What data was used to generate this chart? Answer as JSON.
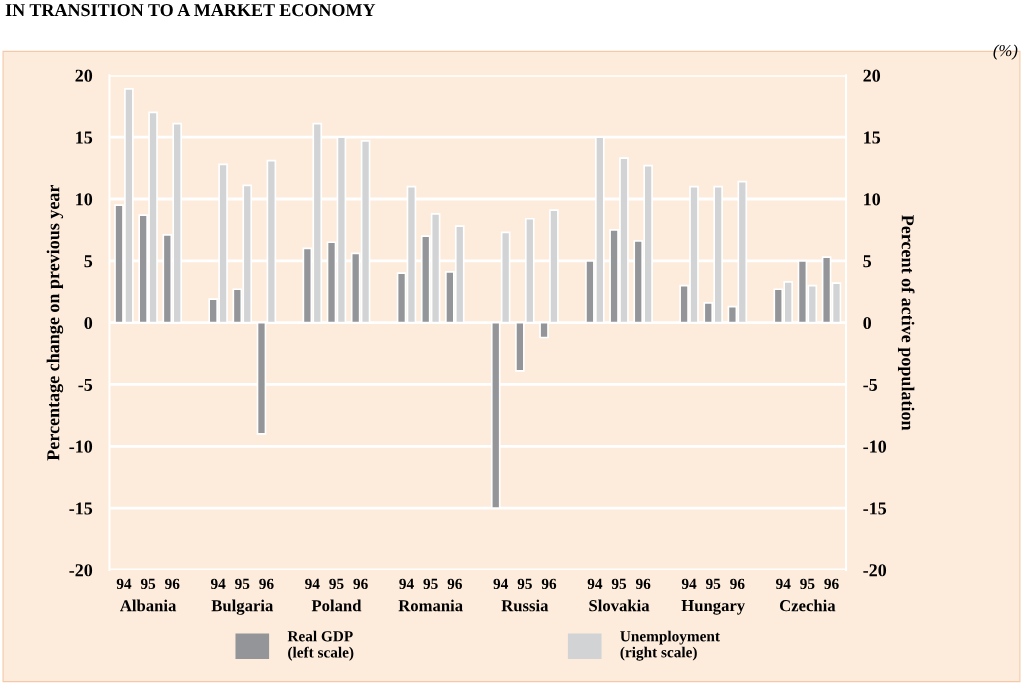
{
  "chart_data": {
    "type": "bar",
    "title": "IN TRANSITION TO A MARKET ECONOMY",
    "ylabel": "Percentage change on previous year",
    "y2label": "Percent of active population",
    "categories": [
      "94",
      "95",
      "96",
      "94",
      "95",
      "96",
      "94",
      "95",
      "96",
      "94",
      "95",
      "96",
      "94",
      "95",
      "96",
      "94",
      "95",
      "96",
      "94",
      "95",
      "96",
      "94",
      "95",
      "96"
    ],
    "annotations": [
      "(%)",
      "Albania",
      "Bulgaria",
      "Poland",
      "Romania",
      "Russia",
      "Slovakia",
      "Hungary",
      "Czechia"
    ],
    "series": [
      {
        "name": "Real GDP\n(left scale)",
        "color": "#939598",
        "values": [
          9.5,
          8.7,
          7.1,
          1.9,
          2.7,
          -9.0,
          6.0,
          6.5,
          5.6,
          4.0,
          7.0,
          4.1,
          -15.0,
          -3.9,
          -1.2,
          5.0,
          7.5,
          6.6,
          3.0,
          1.6,
          1.3,
          2.7,
          5.0,
          5.3
        ]
      },
      {
        "name": "Unemployment\n(right scale)",
        "color": "#d1d3d4",
        "axis": "y2",
        "values": [
          18.9,
          17.0,
          16.1,
          12.8,
          11.1,
          13.1,
          16.1,
          15.0,
          14.7,
          11.0,
          8.8,
          7.8,
          7.3,
          8.4,
          9.1,
          15.0,
          13.3,
          12.7,
          11.0,
          11.0,
          11.4,
          3.3,
          3.0,
          3.2
        ]
      }
    ],
    "ylim": [
      -20,
      20
    ],
    "yticks": [
      20,
      15,
      10,
      5,
      0,
      -5,
      -10,
      -15,
      -20
    ],
    "y2lim": [
      -20,
      20
    ],
    "y2ticks": [
      20,
      15,
      10,
      5,
      0,
      -5,
      -10,
      -15,
      -20
    ],
    "grid": "y",
    "legend": "bottom"
  }
}
